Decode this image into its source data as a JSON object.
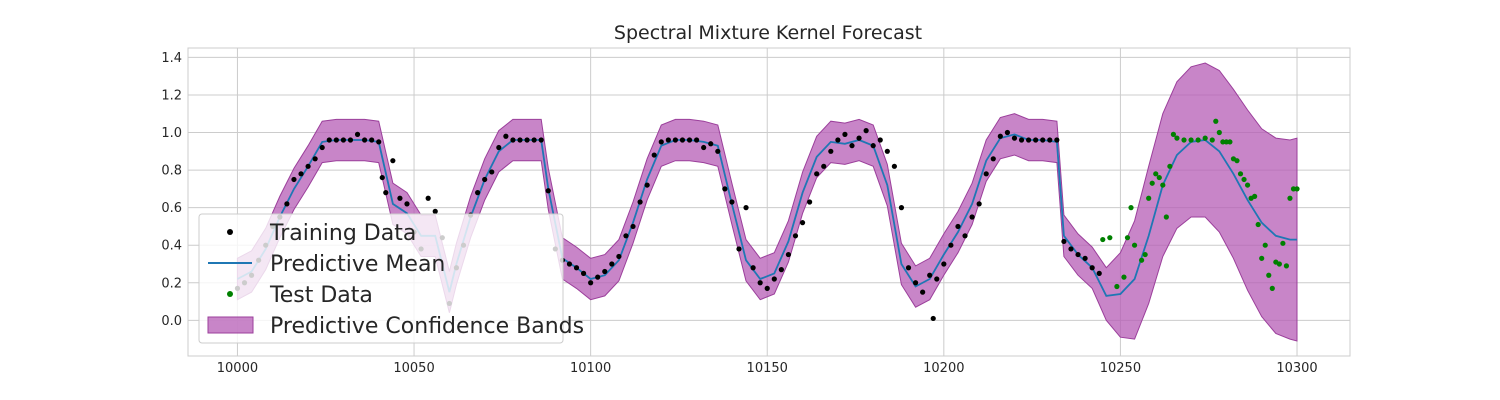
{
  "chart_data": {
    "type": "line",
    "title": "Spectral Mixture Kernel Forecast",
    "xlabel": "",
    "ylabel": "",
    "xlim": [
      9986,
      10315
    ],
    "ylim": [
      -0.19,
      1.45
    ],
    "x_ticks": [
      10000,
      10050,
      10100,
      10150,
      10200,
      10250,
      10300
    ],
    "y_ticks": [
      0.0,
      0.2,
      0.4,
      0.6,
      0.8,
      1.0,
      1.2,
      1.4
    ],
    "grid": true,
    "legend_position": "lower-left",
    "legend": [
      {
        "label": "Training Data",
        "kind": "marker",
        "color": "#000000"
      },
      {
        "label": "Predictive Mean",
        "kind": "line",
        "color": "#1f77b4"
      },
      {
        "label": "Test Data",
        "kind": "marker",
        "color": "#008000"
      },
      {
        "label": "Predictive Confidence Bands",
        "kind": "patch",
        "color": "#b55cb5"
      }
    ],
    "series": [
      {
        "name": "Predictive Mean",
        "color": "#1f77b4",
        "x": [
          10000,
          10004,
          10008,
          10012,
          10016,
          10020,
          10024,
          10028,
          10032,
          10036,
          10040,
          10044,
          10048,
          10052,
          10056,
          10060,
          10062,
          10066,
          10070,
          10074,
          10078,
          10082,
          10086,
          10088,
          10092,
          10096,
          10100,
          10104,
          10108,
          10112,
          10116,
          10120,
          10124,
          10128,
          10132,
          10136,
          10140,
          10144,
          10148,
          10152,
          10156,
          10160,
          10164,
          10168,
          10172,
          10176,
          10180,
          10184,
          10188,
          10192,
          10196,
          10200,
          10204,
          10208,
          10212,
          10216,
          10220,
          10224,
          10228,
          10232,
          10234,
          10238,
          10242,
          10246,
          10250,
          10254,
          10258,
          10262,
          10266,
          10270,
          10274,
          10278,
          10282,
          10286,
          10290,
          10294,
          10298,
          10300
        ],
        "values": [
          0.22,
          0.26,
          0.38,
          0.55,
          0.7,
          0.82,
          0.95,
          0.96,
          0.96,
          0.96,
          0.95,
          0.62,
          0.57,
          0.45,
          0.45,
          0.15,
          0.3,
          0.55,
          0.75,
          0.9,
          0.96,
          0.96,
          0.96,
          0.7,
          0.33,
          0.28,
          0.22,
          0.24,
          0.32,
          0.52,
          0.75,
          0.93,
          0.96,
          0.96,
          0.95,
          0.93,
          0.62,
          0.32,
          0.22,
          0.25,
          0.42,
          0.68,
          0.87,
          0.95,
          0.94,
          0.96,
          0.93,
          0.72,
          0.3,
          0.18,
          0.22,
          0.35,
          0.47,
          0.62,
          0.85,
          0.97,
          0.99,
          0.96,
          0.96,
          0.95,
          0.45,
          0.35,
          0.28,
          0.13,
          0.14,
          0.22,
          0.45,
          0.72,
          0.88,
          0.95,
          0.96,
          0.9,
          0.78,
          0.64,
          0.52,
          0.45,
          0.43,
          0.43
        ]
      },
      {
        "name": "Predictive Confidence Bands",
        "color": "#b55cb5",
        "x": [
          10000,
          10004,
          10008,
          10012,
          10016,
          10020,
          10024,
          10028,
          10032,
          10036,
          10040,
          10044,
          10048,
          10052,
          10056,
          10060,
          10062,
          10066,
          10070,
          10074,
          10078,
          10082,
          10086,
          10088,
          10092,
          10096,
          10100,
          10104,
          10108,
          10112,
          10116,
          10120,
          10124,
          10128,
          10132,
          10136,
          10140,
          10144,
          10148,
          10152,
          10156,
          10160,
          10164,
          10168,
          10172,
          10176,
          10180,
          10184,
          10188,
          10192,
          10196,
          10200,
          10204,
          10208,
          10212,
          10216,
          10220,
          10224,
          10228,
          10232,
          10234,
          10238,
          10242,
          10246,
          10250,
          10254,
          10258,
          10262,
          10266,
          10270,
          10274,
          10278,
          10282,
          10286,
          10290,
          10294,
          10298,
          10300
        ],
        "upper": [
          0.33,
          0.37,
          0.49,
          0.66,
          0.81,
          0.93,
          1.06,
          1.07,
          1.07,
          1.07,
          1.06,
          0.73,
          0.68,
          0.56,
          0.56,
          0.26,
          0.41,
          0.66,
          0.86,
          1.01,
          1.07,
          1.07,
          1.07,
          0.81,
          0.44,
          0.39,
          0.33,
          0.35,
          0.43,
          0.63,
          0.86,
          1.04,
          1.07,
          1.07,
          1.06,
          1.04,
          0.73,
          0.43,
          0.33,
          0.36,
          0.53,
          0.79,
          0.98,
          1.06,
          1.05,
          1.07,
          1.04,
          0.83,
          0.41,
          0.29,
          0.33,
          0.46,
          0.58,
          0.73,
          0.96,
          1.08,
          1.1,
          1.07,
          1.07,
          1.06,
          0.56,
          0.46,
          0.39,
          0.28,
          0.36,
          0.53,
          0.82,
          1.1,
          1.27,
          1.35,
          1.37,
          1.33,
          1.23,
          1.12,
          1.02,
          0.97,
          0.96,
          0.97
        ],
        "lower": [
          0.11,
          0.15,
          0.27,
          0.44,
          0.59,
          0.71,
          0.84,
          0.85,
          0.85,
          0.85,
          0.84,
          0.51,
          0.46,
          0.34,
          0.34,
          0.04,
          0.19,
          0.44,
          0.64,
          0.79,
          0.85,
          0.85,
          0.85,
          0.59,
          0.22,
          0.17,
          0.11,
          0.13,
          0.21,
          0.41,
          0.64,
          0.82,
          0.85,
          0.85,
          0.84,
          0.82,
          0.51,
          0.21,
          0.11,
          0.14,
          0.31,
          0.57,
          0.76,
          0.84,
          0.83,
          0.85,
          0.82,
          0.61,
          0.19,
          0.07,
          0.11,
          0.24,
          0.36,
          0.51,
          0.74,
          0.86,
          0.88,
          0.85,
          0.85,
          0.84,
          0.34,
          0.24,
          0.17,
          0.0,
          -0.09,
          -0.1,
          0.09,
          0.34,
          0.49,
          0.55,
          0.55,
          0.47,
          0.33,
          0.16,
          0.02,
          -0.07,
          -0.1,
          -0.11
        ]
      },
      {
        "name": "Training Data",
        "color": "#000000",
        "x": [
          10000,
          10002,
          10004,
          10006,
          10008,
          10010,
          10012,
          10014,
          10016,
          10018,
          10020,
          10022,
          10024,
          10026,
          10028,
          10030,
          10032,
          10034,
          10036,
          10038,
          10040,
          10041,
          10042,
          10044,
          10046,
          10048,
          10050,
          10052,
          10054,
          10056,
          10058,
          10060,
          10062,
          10064,
          10066,
          10068,
          10070,
          10072,
          10074,
          10076,
          10078,
          10080,
          10082,
          10084,
          10086,
          10088,
          10090,
          10092,
          10094,
          10096,
          10098,
          10100,
          10102,
          10104,
          10106,
          10108,
          10110,
          10112,
          10114,
          10116,
          10118,
          10120,
          10122,
          10124,
          10126,
          10128,
          10130,
          10132,
          10134,
          10136,
          10138,
          10140,
          10142,
          10144,
          10146,
          10148,
          10150,
          10152,
          10154,
          10156,
          10158,
          10160,
          10162,
          10164,
          10166,
          10168,
          10170,
          10172,
          10174,
          10176,
          10178,
          10180,
          10182,
          10184,
          10186,
          10188,
          10190,
          10192,
          10194,
          10196,
          10197,
          10198,
          10200,
          10202,
          10204,
          10206,
          10208,
          10210,
          10212,
          10214,
          10216,
          10218,
          10220,
          10222,
          10224,
          10226,
          10228,
          10230,
          10232,
          10234,
          10236,
          10238,
          10240,
          10242,
          10244
        ],
        "values": [
          0.17,
          0.2,
          0.24,
          0.32,
          0.4,
          0.5,
          0.55,
          0.62,
          0.75,
          0.78,
          0.82,
          0.86,
          0.92,
          0.96,
          0.96,
          0.96,
          0.96,
          0.99,
          0.96,
          0.96,
          0.95,
          0.76,
          0.68,
          0.85,
          0.65,
          0.62,
          0.47,
          0.38,
          0.65,
          0.58,
          0.44,
          0.09,
          0.28,
          0.4,
          0.56,
          0.68,
          0.75,
          0.79,
          0.92,
          0.98,
          0.96,
          0.96,
          0.96,
          0.96,
          0.96,
          0.69,
          0.38,
          0.32,
          0.3,
          0.28,
          0.25,
          0.2,
          0.23,
          0.26,
          0.3,
          0.34,
          0.45,
          0.5,
          0.63,
          0.72,
          0.88,
          0.95,
          0.96,
          0.96,
          0.96,
          0.96,
          0.96,
          0.92,
          0.94,
          0.9,
          0.7,
          0.63,
          0.38,
          0.6,
          0.28,
          0.2,
          0.17,
          0.22,
          0.27,
          0.35,
          0.45,
          0.52,
          0.63,
          0.78,
          0.82,
          0.9,
          0.96,
          0.99,
          0.93,
          0.97,
          1.01,
          0.93,
          0.96,
          0.9,
          0.82,
          0.6,
          0.28,
          0.2,
          0.15,
          0.24,
          0.01,
          0.22,
          0.3,
          0.4,
          0.5,
          0.45,
          0.55,
          0.62,
          0.78,
          0.86,
          0.98,
          1.0,
          0.97,
          0.96,
          0.96,
          0.96,
          0.96,
          0.96,
          0.96,
          0.42,
          0.38,
          0.35,
          0.33,
          0.28,
          0.25
        ]
      },
      {
        "name": "Test Data",
        "color": "#008000",
        "x": [
          10245,
          10247,
          10249,
          10251,
          10252,
          10253,
          10254,
          10256,
          10257,
          10258,
          10259,
          10260,
          10261,
          10262,
          10263,
          10264,
          10265,
          10266,
          10268,
          10270,
          10272,
          10274,
          10276,
          10277,
          10278,
          10279,
          10280,
          10281,
          10282,
          10283,
          10284,
          10285,
          10286,
          10287,
          10288,
          10289,
          10290,
          10291,
          10292,
          10293,
          10294,
          10295,
          10296,
          10297,
          10298,
          10299,
          10300
        ],
        "values": [
          0.43,
          0.44,
          0.18,
          0.23,
          0.44,
          0.6,
          0.4,
          0.32,
          0.35,
          0.65,
          0.73,
          0.78,
          0.76,
          0.72,
          0.55,
          0.82,
          0.99,
          0.97,
          0.96,
          0.96,
          0.96,
          0.97,
          0.96,
          1.06,
          1.0,
          0.95,
          0.95,
          0.95,
          0.86,
          0.85,
          0.78,
          0.75,
          0.72,
          0.65,
          0.66,
          0.51,
          0.33,
          0.4,
          0.24,
          0.17,
          0.31,
          0.3,
          0.41,
          0.29,
          0.65,
          0.7,
          0.7
        ]
      }
    ]
  }
}
